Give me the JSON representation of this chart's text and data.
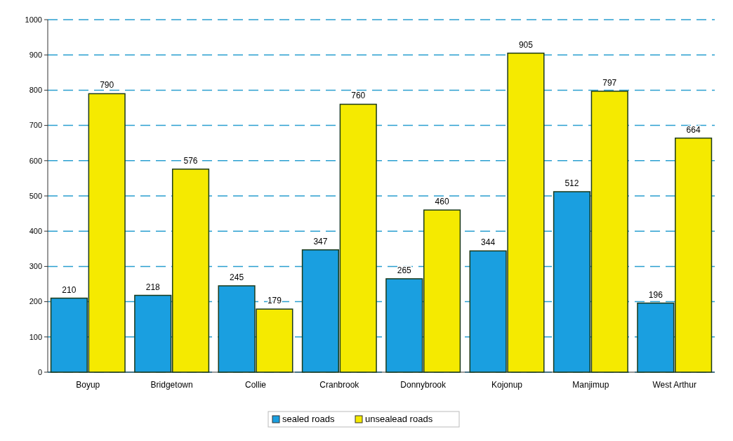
{
  "chart_data": {
    "type": "bar",
    "categories": [
      "Boyup",
      "Bridgetown",
      "Collie",
      "Cranbrook",
      "Donnybrook",
      "Kojonup",
      "Manjimup",
      "West Arthur"
    ],
    "series": [
      {
        "name": "sealed roads",
        "color": "#1a9fe0",
        "values": [
          210,
          218,
          245,
          347,
          265,
          344,
          512,
          196
        ]
      },
      {
        "name": "unsealead roads",
        "color": "#f5ea00",
        "values": [
          790,
          576,
          179,
          760,
          460,
          905,
          797,
          664
        ]
      }
    ],
    "ylim": [
      0,
      1000
    ],
    "yticks": [
      0,
      100,
      200,
      300,
      400,
      500,
      600,
      700,
      800,
      900,
      1000
    ],
    "grid": "y",
    "legend": "bottom",
    "data_labels": true
  }
}
